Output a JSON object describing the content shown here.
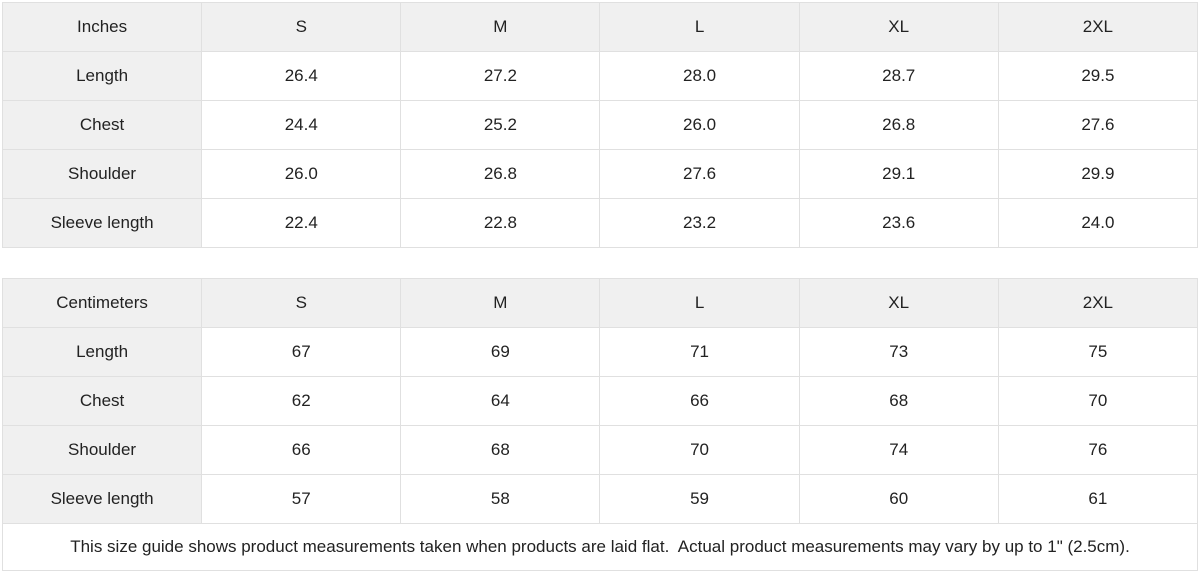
{
  "colors": {
    "header_bg": "#f0f0f0",
    "border": "#e0e0e0",
    "text": "#222222",
    "page_bg": "#ffffff"
  },
  "tables": [
    {
      "unit_label": "Inches",
      "columns": [
        "S",
        "M",
        "L",
        "XL",
        "2XL"
      ],
      "rows": [
        {
          "label": "Length",
          "values": [
            "26.4",
            "27.2",
            "28.0",
            "28.7",
            "29.5"
          ]
        },
        {
          "label": "Chest",
          "values": [
            "24.4",
            "25.2",
            "26.0",
            "26.8",
            "27.6"
          ]
        },
        {
          "label": "Shoulder",
          "values": [
            "26.0",
            "26.8",
            "27.6",
            "29.1",
            "29.9"
          ]
        },
        {
          "label": "Sleeve length",
          "values": [
            "22.4",
            "22.8",
            "23.2",
            "23.6",
            "24.0"
          ]
        }
      ]
    },
    {
      "unit_label": "Centimeters",
      "columns": [
        "S",
        "M",
        "L",
        "XL",
        "2XL"
      ],
      "rows": [
        {
          "label": "Length",
          "values": [
            "67",
            "69",
            "71",
            "73",
            "75"
          ]
        },
        {
          "label": "Chest",
          "values": [
            "62",
            "64",
            "66",
            "68",
            "70"
          ]
        },
        {
          "label": "Shoulder",
          "values": [
            "66",
            "68",
            "70",
            "74",
            "76"
          ]
        },
        {
          "label": "Sleeve length",
          "values": [
            "57",
            "58",
            "59",
            "60",
            "61"
          ]
        }
      ]
    }
  ],
  "footer": {
    "note": "This size guide shows product measurements taken when products are laid flat.  Actual product measurements may vary by up to 1\" (2.5cm)."
  }
}
